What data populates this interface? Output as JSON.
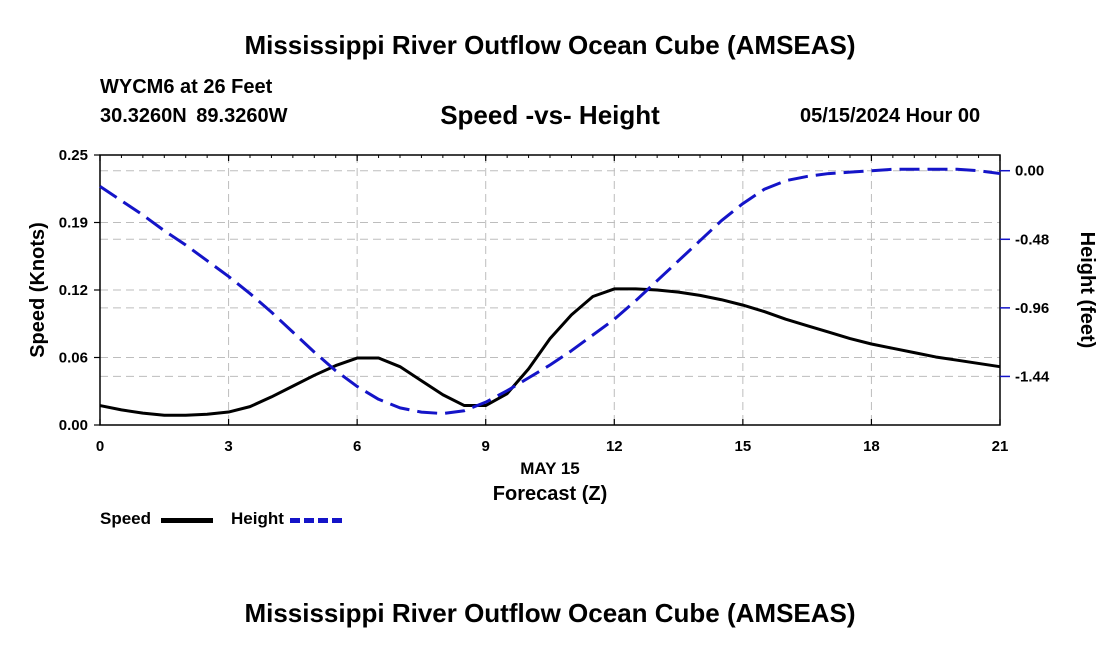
{
  "page": {
    "title_top": "Mississippi River Outflow Ocean Cube (AMSEAS)",
    "title_bottom": "Mississippi River Outflow Ocean Cube (AMSEAS)",
    "station_name": "WYCM6 at 26 Feet",
    "station_coords": "30.3260N  89.3260W",
    "datetime": "05/15/2024 Hour 00"
  },
  "chart_data": {
    "type": "line",
    "title": "Speed -vs- Height",
    "xlabel": "Forecast (Z)",
    "x_date_label": "MAY 15",
    "ylabel": "Speed (Knots)",
    "y2label": "Height (feet)",
    "xlim": [
      0,
      21
    ],
    "ylim": [
      0,
      0.25
    ],
    "y2lim": [
      -1.78,
      0.11
    ],
    "grid": true,
    "x_ticks": [
      0,
      3,
      6,
      9,
      12,
      15,
      18,
      21
    ],
    "x_tick_labels": [
      "0",
      "3",
      "6",
      "9",
      "12",
      "15",
      "18",
      "21"
    ],
    "y_ticks": [
      0,
      0.0625,
      0.125,
      0.1875,
      0.25
    ],
    "y_tick_labels": [
      "0.00",
      "0.06",
      "0.12",
      "0.19",
      "0.25"
    ],
    "y2_ticks": [
      0,
      -0.48,
      -0.96,
      -1.44
    ],
    "y2_tick_labels": [
      "0.00",
      "-0.48",
      "-0.96",
      "-1.44"
    ],
    "series": [
      {
        "name": "Speed",
        "axis": "left",
        "color": "#000000",
        "style": "solid",
        "x": [
          0,
          0.5,
          1,
          1.5,
          2,
          2.5,
          3,
          3.5,
          4,
          4.5,
          5,
          5.5,
          6,
          6.5,
          7,
          7.5,
          8,
          8.5,
          9,
          9.5,
          10,
          10.5,
          11,
          11.5,
          12,
          12.5,
          13,
          13.5,
          14,
          14.5,
          15,
          15.5,
          16,
          16.5,
          17,
          17.5,
          18,
          18.5,
          19,
          19.5,
          20,
          20.5,
          21
        ],
        "values": [
          0.018,
          0.014,
          0.011,
          0.009,
          0.009,
          0.01,
          0.012,
          0.017,
          0.026,
          0.036,
          0.046,
          0.055,
          0.062,
          0.062,
          0.054,
          0.041,
          0.028,
          0.018,
          0.018,
          0.029,
          0.052,
          0.08,
          0.102,
          0.119,
          0.126,
          0.126,
          0.125,
          0.123,
          0.12,
          0.116,
          0.111,
          0.105,
          0.098,
          0.092,
          0.086,
          0.08,
          0.075,
          0.071,
          0.067,
          0.063,
          0.06,
          0.057,
          0.054
        ]
      },
      {
        "name": "Height",
        "axis": "right",
        "color": "#1414c8",
        "style": "dashed",
        "x": [
          0,
          0.5,
          1,
          1.5,
          2,
          2.5,
          3,
          3.5,
          4,
          4.5,
          5,
          5.5,
          6,
          6.5,
          7,
          7.5,
          8,
          8.5,
          9,
          9.5,
          10,
          10.5,
          11,
          11.5,
          12,
          12.5,
          13,
          13.5,
          14,
          14.5,
          15,
          15.5,
          16,
          16.5,
          17,
          17.5,
          18,
          18.5,
          19,
          19.5,
          20,
          20.5,
          21
        ],
        "values": [
          -0.11,
          -0.21,
          -0.31,
          -0.42,
          -0.52,
          -0.63,
          -0.74,
          -0.86,
          -0.99,
          -1.13,
          -1.27,
          -1.4,
          -1.51,
          -1.6,
          -1.66,
          -1.69,
          -1.7,
          -1.68,
          -1.62,
          -1.54,
          -1.45,
          -1.36,
          -1.26,
          -1.15,
          -1.04,
          -0.91,
          -0.77,
          -0.63,
          -0.49,
          -0.35,
          -0.23,
          -0.13,
          -0.07,
          -0.04,
          -0.02,
          -0.01,
          0.0,
          0.01,
          0.01,
          0.01,
          0.01,
          0.0,
          -0.02
        ]
      }
    ],
    "legend": [
      {
        "label": "Speed",
        "color": "#000000",
        "style": "solid"
      },
      {
        "label": "Height",
        "color": "#1414c8",
        "style": "dashed"
      }
    ],
    "legend_position": "bottom-left"
  }
}
